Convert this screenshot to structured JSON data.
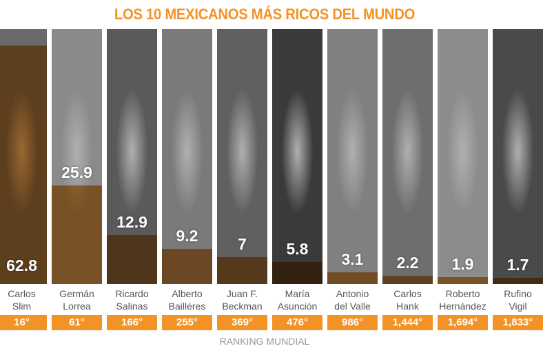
{
  "chart_data": {
    "type": "bar",
    "title": "LOS 10 MEXICANOS MÁS RICOS DEL MUNDO",
    "xlabel": "RANKING MUNDIAL",
    "categories": [
      "Carlos Slim",
      "Germán Lorrea",
      "Ricardo Salinas",
      "Alberto Bailléres",
      "Juan F. Beckman",
      "María Asunción",
      "Antonio del Valle",
      "Carlos Hank",
      "Roberto Hernández",
      "Rufino Vigil"
    ],
    "name_lines": [
      [
        "Carlos",
        "Slim"
      ],
      [
        "Germán",
        "Lorrea"
      ],
      [
        "Ricardo",
        "Salinas"
      ],
      [
        "Alberto",
        "Bailléres"
      ],
      [
        "Juan F.",
        "Beckman"
      ],
      [
        "María",
        "Asunción"
      ],
      [
        "Antonio",
        "del Valle"
      ],
      [
        "Carlos",
        "Hank"
      ],
      [
        "Roberto",
        "Hernández"
      ],
      [
        "Rufino",
        "Vigil"
      ]
    ],
    "values": [
      62.8,
      25.9,
      12.9,
      9.2,
      7,
      5.8,
      3.1,
      2.2,
      1.9,
      1.7
    ],
    "value_labels": [
      "62.8",
      "25.9",
      "12.9",
      "9.2",
      "7",
      "5.8",
      "3.1",
      "2.2",
      "1.9",
      "1.7"
    ],
    "ranks": [
      "16°",
      "61°",
      "166°",
      "255°",
      "369°",
      "476°",
      "986°",
      "1,444°",
      "1,694°",
      "1,833°"
    ],
    "ylim": [
      0,
      62.8
    ],
    "colors": {
      "accent": "#f39325",
      "bar": "#d67814"
    }
  }
}
